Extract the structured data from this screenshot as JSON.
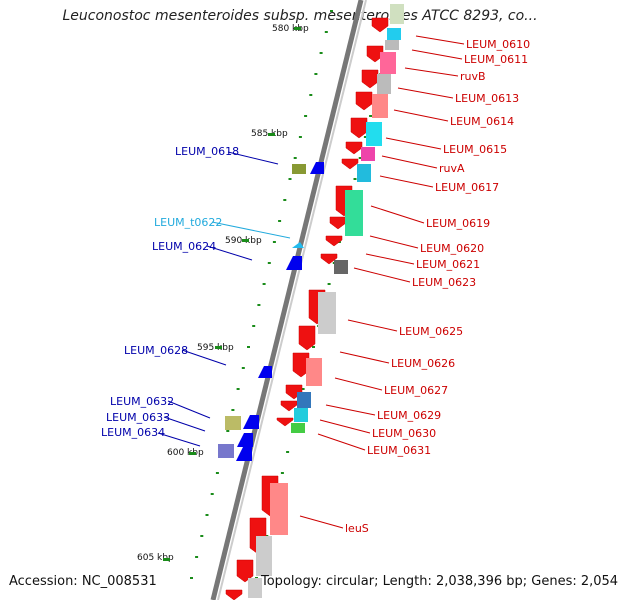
{
  "title": "Leuconostoc mesenteroides subsp. mesenteroides ATCC 8293, co...",
  "footer": {
    "accession": "Accession: NC_008531",
    "topology": "Topology: circular; Length: 2,038,396 bp; Genes: 2,054"
  },
  "colors": {
    "forward_label": "#cc0000",
    "reverse_label": "#0000aa",
    "trna_label": "#22aadd",
    "backbone": "#777777",
    "tick": "#1a8c1a"
  },
  "kbp_marks": [
    "580 kbp",
    "585 kbp",
    "590 kbp",
    "595 kbp",
    "600 kbp",
    "605 kbp"
  ],
  "right_genes": [
    "LEUM_0610",
    "LEUM_0611",
    "ruvB",
    "LEUM_0613",
    "LEUM_0614",
    "LEUM_0615",
    "ruvA",
    "LEUM_0617",
    "LEUM_0619",
    "LEUM_0620",
    "LEUM_0621",
    "LEUM_0623",
    "LEUM_0625",
    "LEUM_0626",
    "LEUM_0627",
    "LEUM_0629",
    "LEUM_0630",
    "LEUM_0631",
    "leuS"
  ],
  "left_genes": [
    "LEUM_0618",
    "LEUM_t0622",
    "LEUM_0624",
    "LEUM_0628",
    "LEUM_0632",
    "LEUM_0633",
    "LEUM_0634"
  ]
}
